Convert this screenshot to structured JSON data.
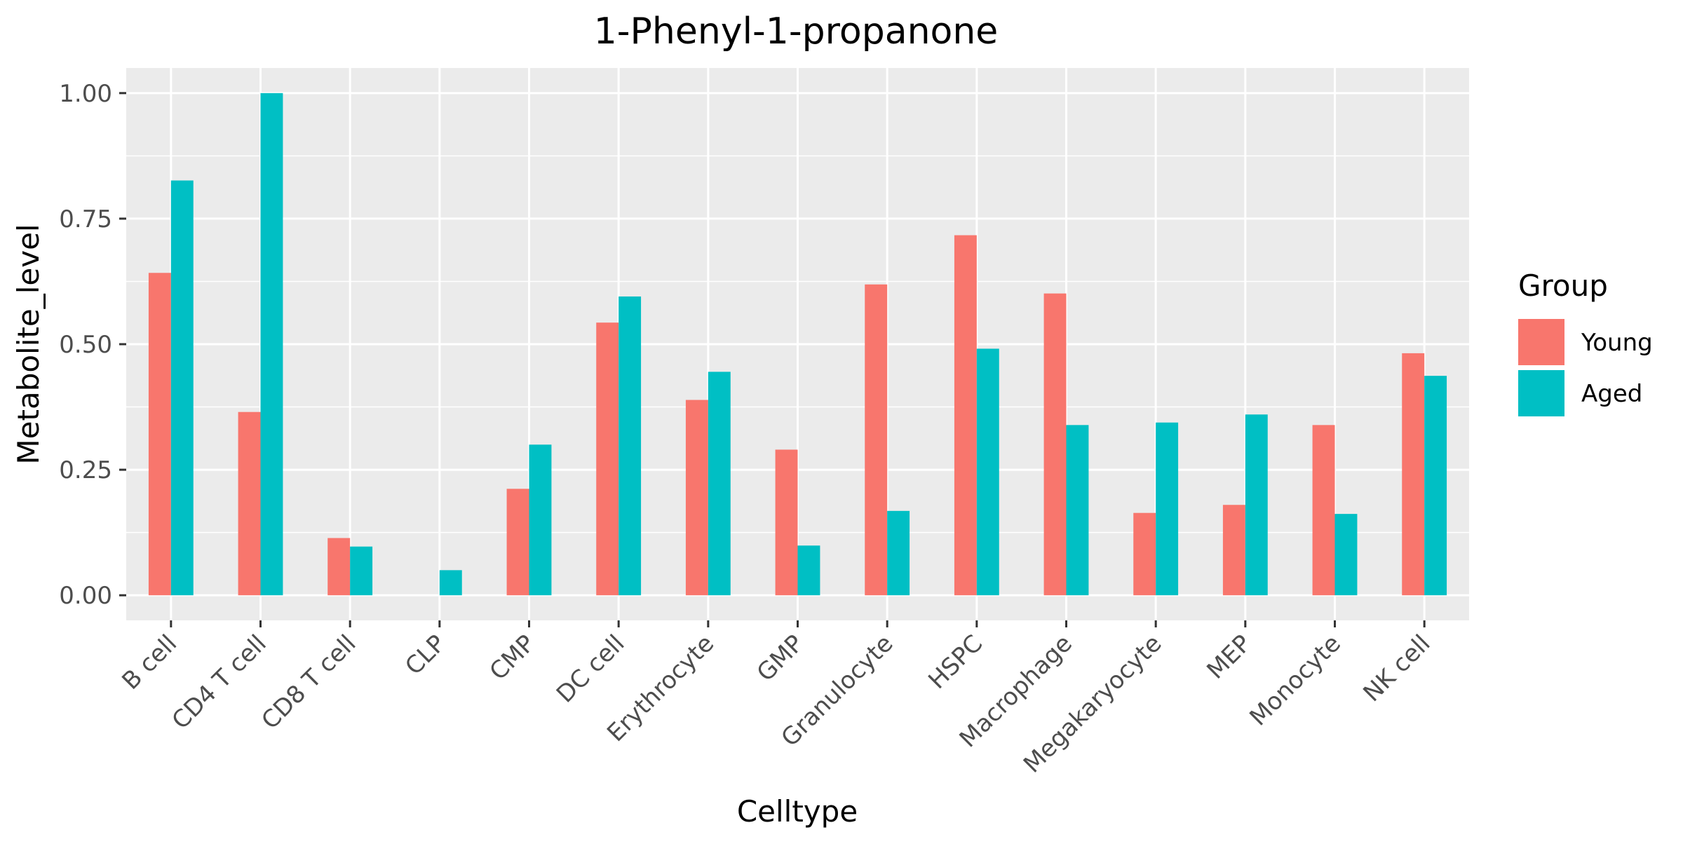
{
  "chart_data": {
    "type": "bar",
    "title": "1-Phenyl-1-propanone",
    "xlabel": "Celltype",
    "ylabel": "Metabolite_level",
    "ylim": [
      -0.05,
      1.05
    ],
    "y_ticks": [
      0.0,
      0.25,
      0.5,
      0.75,
      1.0
    ],
    "y_tick_labels": [
      "0.00",
      "0.25",
      "0.50",
      "0.75",
      "1.00"
    ],
    "grid": true,
    "legend": {
      "title": "Group",
      "position": "right"
    },
    "categories": [
      "B cell",
      "CD4 T cell",
      "CD8 T cell",
      "CLP",
      "CMP",
      "DC cell",
      "Erythrocyte",
      "GMP",
      "Granulocyte",
      "HSPC",
      "Macrophage",
      "Megakaryocyte",
      "MEP",
      "Monocyte",
      "NK cell"
    ],
    "series": [
      {
        "name": "Young",
        "color": "#F8766D",
        "values": [
          0.642,
          0.365,
          0.114,
          0.0,
          0.212,
          0.543,
          0.389,
          0.29,
          0.619,
          0.717,
          0.601,
          0.164,
          0.18,
          0.339,
          0.482
        ]
      },
      {
        "name": "Aged",
        "color": "#00BFC4",
        "values": [
          0.826,
          1.0,
          0.097,
          0.05,
          0.3,
          0.595,
          0.445,
          0.099,
          0.168,
          0.491,
          0.339,
          0.344,
          0.36,
          0.162,
          0.437
        ]
      }
    ]
  }
}
